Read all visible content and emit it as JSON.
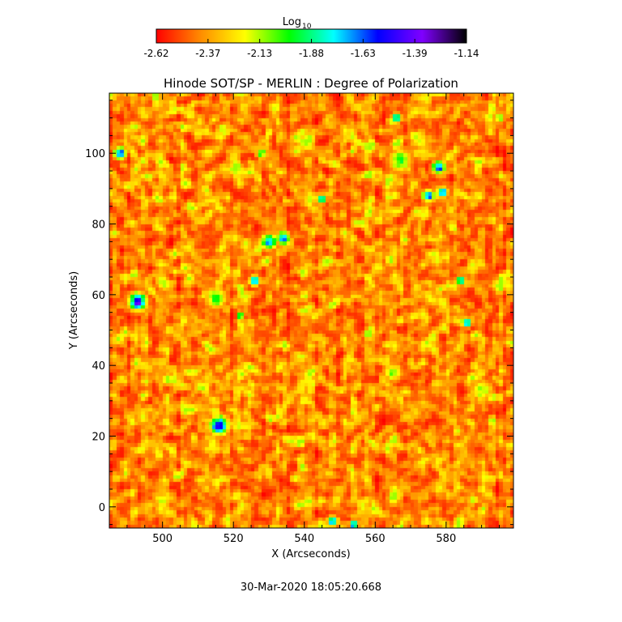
{
  "chart_data": {
    "type": "heatmap",
    "title": "Hinode SOT/SP - MERLIN : Degree of Polarization",
    "xlabel": "X (Arcseconds)",
    "ylabel": "Y (Arcseconds)",
    "xlim": [
      485,
      599
    ],
    "ylim": [
      -6,
      117
    ],
    "x_ticks": [
      500,
      520,
      540,
      560,
      580
    ],
    "y_ticks": [
      0,
      20,
      40,
      60,
      80,
      100
    ],
    "colorbar": {
      "label": "Log",
      "label_subscript": "10",
      "ticks": [
        "-2.62",
        "-2.37",
        "-2.13",
        "-1.88",
        "-1.63",
        "-1.39",
        "-1.14"
      ],
      "range": [
        -2.62,
        -1.14
      ],
      "colors": [
        "#ff0000",
        "#ff8c00",
        "#ffff00",
        "#00ff00",
        "#00ffff",
        "#0000ff",
        "#8000ff",
        "#000000"
      ]
    },
    "clusters": [
      {
        "x": 493,
        "y": 58,
        "value": -1.25,
        "r": 2.4
      },
      {
        "x": 488,
        "y": 100,
        "value": -1.35,
        "r": 1.6
      },
      {
        "x": 515,
        "y": 59,
        "value": -1.9,
        "r": 3.0
      },
      {
        "x": 516,
        "y": 23,
        "value": -1.3,
        "r": 2.6
      },
      {
        "x": 526,
        "y": 64,
        "value": -1.4,
        "r": 1.4
      },
      {
        "x": 530,
        "y": 75,
        "value": -1.55,
        "r": 2.2
      },
      {
        "x": 534,
        "y": 76,
        "value": -1.45,
        "r": 1.8
      },
      {
        "x": 545,
        "y": 87,
        "value": -1.55,
        "r": 1.2
      },
      {
        "x": 566,
        "y": 110,
        "value": -1.6,
        "r": 1.4
      },
      {
        "x": 575,
        "y": 88,
        "value": -1.4,
        "r": 1.6
      },
      {
        "x": 578,
        "y": 96,
        "value": -1.4,
        "r": 1.8
      },
      {
        "x": 579,
        "y": 89,
        "value": -1.5,
        "r": 1.4
      },
      {
        "x": 586,
        "y": 52,
        "value": -1.4,
        "r": 1.2
      },
      {
        "x": 584,
        "y": 64,
        "value": -1.55,
        "r": 1.2
      },
      {
        "x": 548,
        "y": -4,
        "value": -1.5,
        "r": 1.4
      },
      {
        "x": 554,
        "y": -5,
        "value": -1.35,
        "r": 1.2
      },
      {
        "x": 522,
        "y": 54,
        "value": -1.6,
        "r": 1.0
      },
      {
        "x": 567,
        "y": 98,
        "value": -1.9,
        "r": 3.2
      },
      {
        "x": 528,
        "y": 100,
        "value": -1.9,
        "r": 1.6
      },
      {
        "x": 590,
        "y": 33,
        "value": -2.0,
        "r": 3.0
      },
      {
        "x": 565,
        "y": 38,
        "value": -2.0,
        "r": 2.6
      },
      {
        "x": 595,
        "y": 110,
        "value": -2.0,
        "r": 1.6
      }
    ]
  },
  "footer": {
    "timestamp": "30-Mar-2020 18:05:20.668"
  }
}
